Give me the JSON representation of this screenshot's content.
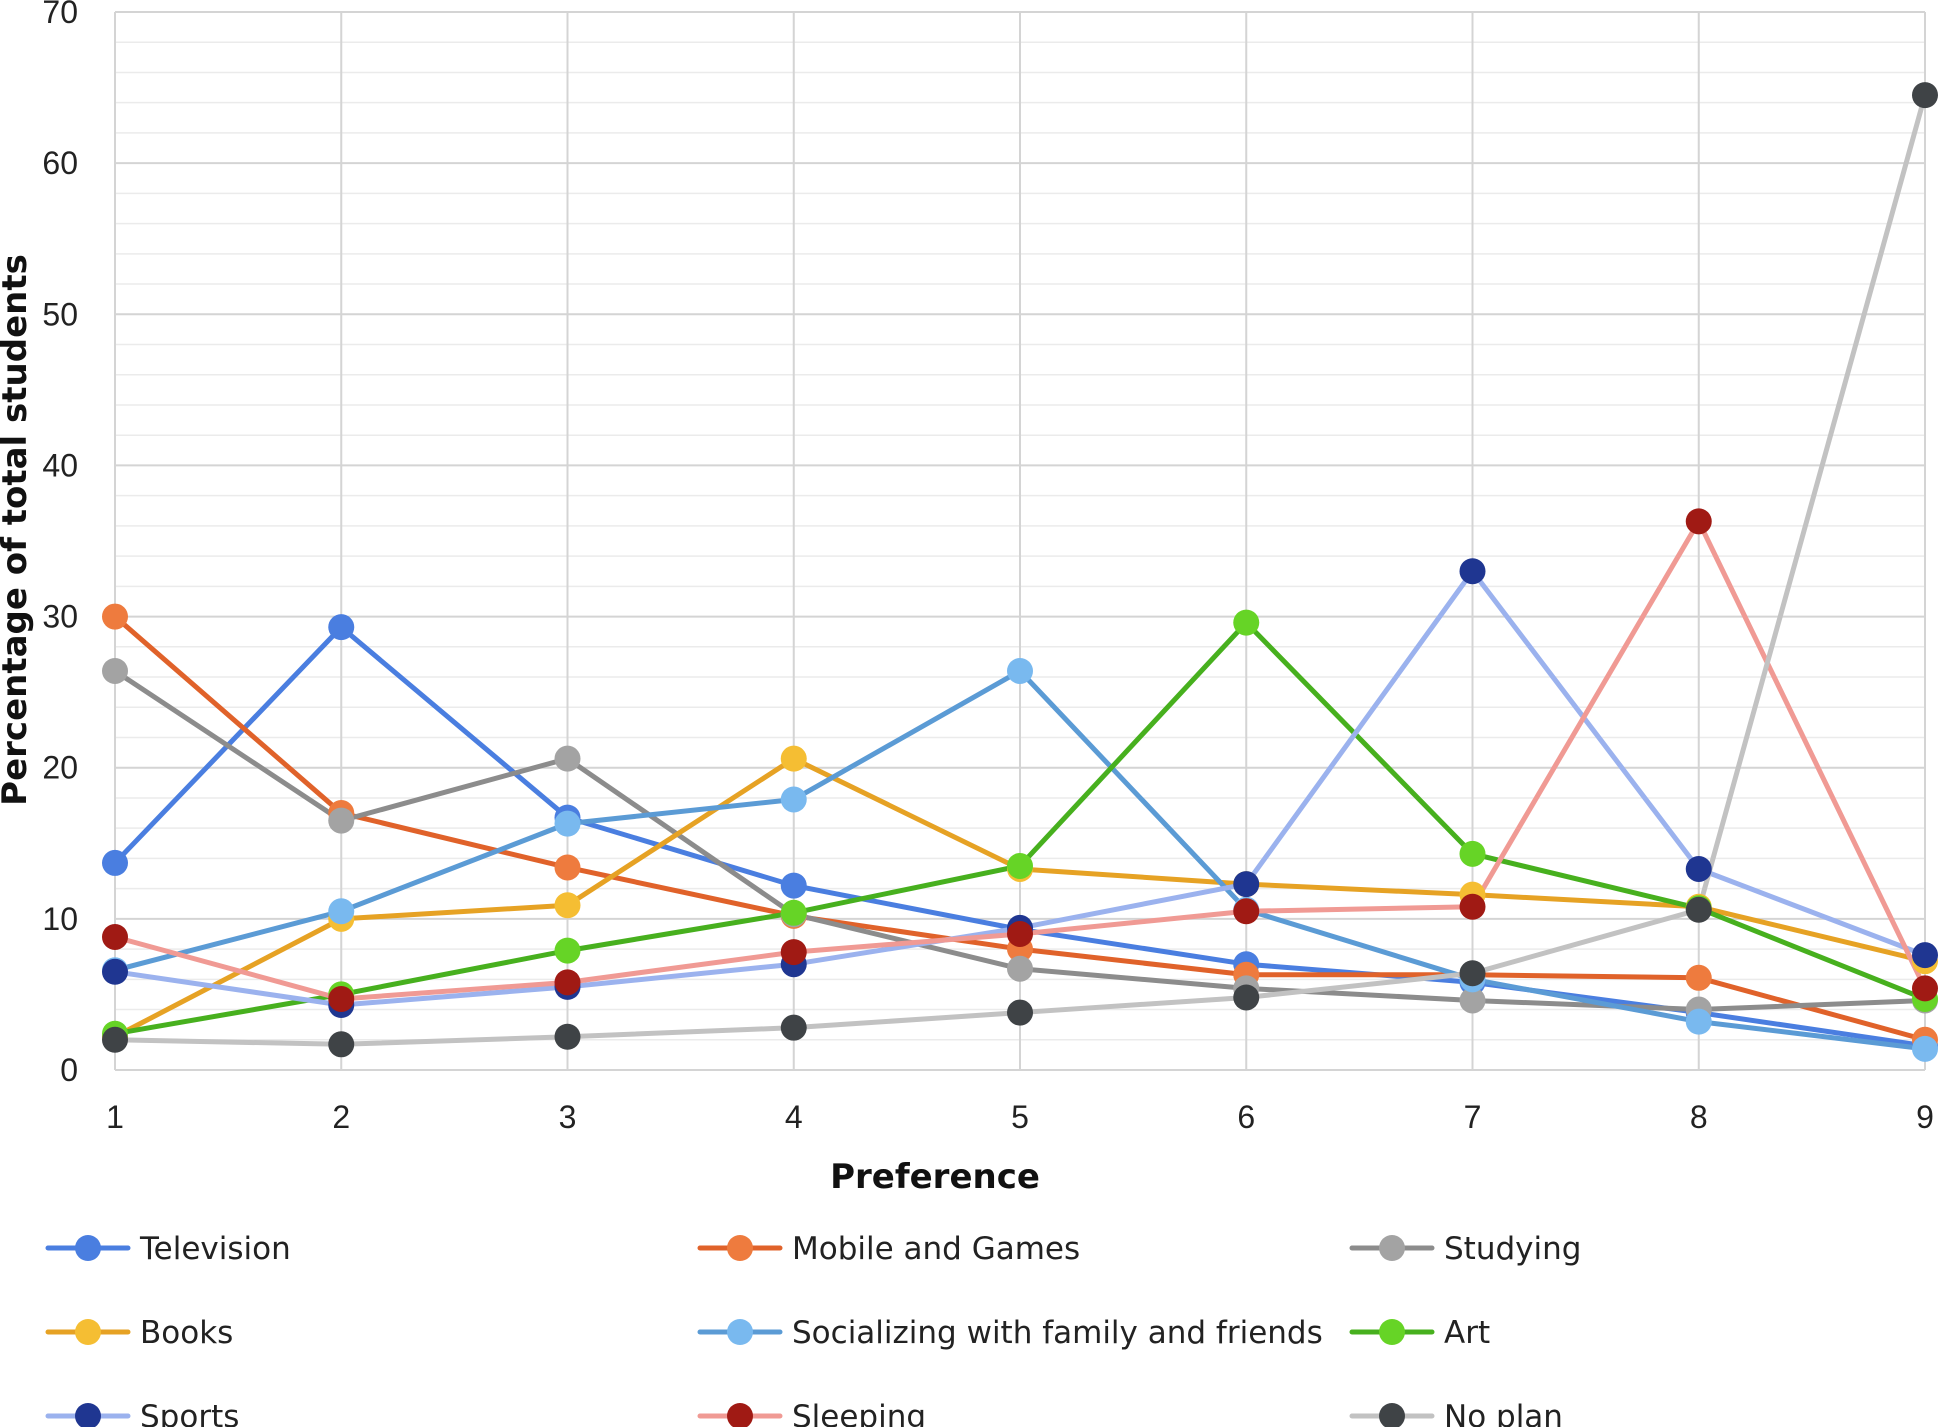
{
  "chart_data": {
    "type": "line",
    "title": "",
    "xlabel": "Preference",
    "ylabel": "Percentage of total students",
    "x": [
      1,
      2,
      3,
      4,
      5,
      6,
      7,
      8,
      9
    ],
    "x_tick_labels": [
      "1",
      "2",
      "3",
      "4",
      "5",
      "6",
      "7",
      "8",
      "9"
    ],
    "ylim": [
      0,
      70
    ],
    "y_ticks": [
      0,
      10,
      20,
      30,
      40,
      50,
      60,
      70
    ],
    "y_tick_labels": [
      "0",
      "10",
      "20",
      "30",
      "40",
      "50",
      "60",
      "70"
    ],
    "grid": true,
    "legend_position": "bottom",
    "series": [
      {
        "name": "Television",
        "line_color": "#4a7ee0",
        "marker_color": "#4a7ee0",
        "values": [
          13.7,
          29.3,
          16.7,
          12.2,
          9.3,
          7.0,
          5.8,
          3.8,
          1.6
        ]
      },
      {
        "name": "Mobile and Games",
        "line_color": "#e0622a",
        "marker_color": "#ee7b3e",
        "values": [
          30.0,
          17.0,
          13.4,
          10.2,
          8.0,
          6.3,
          6.3,
          6.1,
          2.0
        ]
      },
      {
        "name": "Studying",
        "line_color": "#8c8c8c",
        "marker_color": "#a3a3a3",
        "values": [
          26.4,
          16.5,
          20.6,
          10.3,
          6.7,
          5.4,
          4.6,
          4.0,
          4.6
        ]
      },
      {
        "name": "Books",
        "line_color": "#e6a224",
        "marker_color": "#f5be33",
        "values": [
          2.2,
          10.0,
          10.9,
          20.6,
          13.3,
          12.3,
          11.6,
          10.8,
          7.2
        ]
      },
      {
        "name": "Socializing with family and friends",
        "line_color": "#5b9bd5",
        "marker_color": "#79b9ef",
        "values": [
          6.6,
          10.5,
          16.3,
          17.9,
          26.4,
          10.6,
          6.0,
          3.2,
          1.4
        ]
      },
      {
        "name": "Art",
        "line_color": "#47b01e",
        "marker_color": "#66d426",
        "values": [
          2.4,
          5.0,
          7.9,
          10.4,
          13.5,
          29.6,
          14.3,
          10.7,
          4.7
        ]
      },
      {
        "name": "Sports",
        "line_color": "#9bb2ee",
        "marker_color": "#1f3691",
        "values": [
          6.5,
          4.3,
          5.5,
          7.0,
          9.4,
          12.3,
          33.0,
          13.3,
          7.6
        ]
      },
      {
        "name": "Sleeping",
        "line_color": "#f09a94",
        "marker_color": "#a01a14",
        "values": [
          8.8,
          4.7,
          5.8,
          7.8,
          9.0,
          10.5,
          10.8,
          36.3,
          5.4
        ]
      },
      {
        "name": "No plan",
        "line_color": "#c2c2c2",
        "marker_color": "#3f4346",
        "values": [
          2.0,
          1.7,
          2.2,
          2.8,
          3.8,
          4.8,
          6.4,
          10.6,
          64.5
        ]
      }
    ]
  }
}
